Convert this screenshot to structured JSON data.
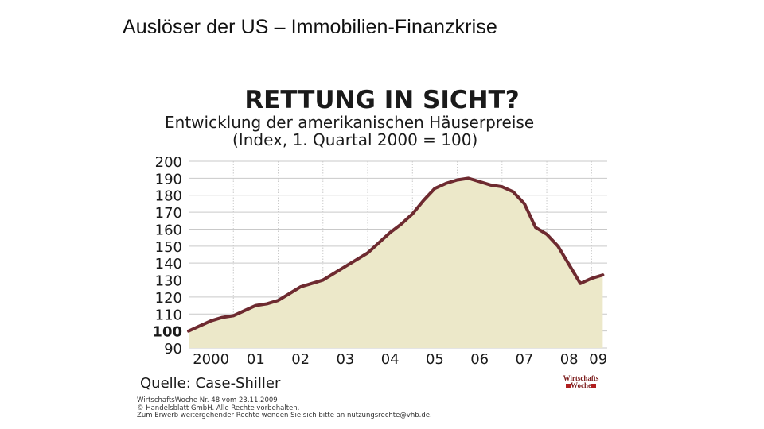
{
  "slide": {
    "title": "Auslöser der US – Immobilien-Finanzkrise"
  },
  "chart_data": {
    "type": "area",
    "title": "RETTUNG IN SICHT?",
    "subtitle_line1": "Entwicklung der amerikanischen Häuserpreise",
    "subtitle_line2": "(Index, 1. Quartal 2000 = 100)",
    "ylim": [
      90,
      200
    ],
    "yticks": [
      200,
      190,
      180,
      170,
      160,
      150,
      140,
      130,
      120,
      110,
      100,
      90
    ],
    "xlim": [
      2000,
      2009.35
    ],
    "xticks": [
      {
        "label": "2000",
        "x": 2000.5
      },
      {
        "label": "01",
        "x": 2001.5
      },
      {
        "label": "02",
        "x": 2002.5
      },
      {
        "label": "03",
        "x": 2003.5
      },
      {
        "label": "04",
        "x": 2004.5
      },
      {
        "label": "05",
        "x": 2005.5
      },
      {
        "label": "06",
        "x": 2006.5
      },
      {
        "label": "07",
        "x": 2007.5
      },
      {
        "label": "08",
        "x": 2008.5
      },
      {
        "label": "09",
        "x": 2009.15
      }
    ],
    "grid": true,
    "series": [
      {
        "name": "Case-Shiller Index",
        "x": [
          2000.0,
          2000.25,
          2000.5,
          2000.75,
          2001.0,
          2001.25,
          2001.5,
          2001.75,
          2002.0,
          2002.25,
          2002.5,
          2002.75,
          2003.0,
          2003.25,
          2003.5,
          2003.75,
          2004.0,
          2004.25,
          2004.5,
          2004.75,
          2005.0,
          2005.25,
          2005.5,
          2005.75,
          2006.0,
          2006.25,
          2006.5,
          2006.75,
          2007.0,
          2007.25,
          2007.5,
          2007.75,
          2008.0,
          2008.25,
          2008.5,
          2008.75,
          2009.0,
          2009.25
        ],
        "values": [
          100,
          103,
          106,
          108,
          109,
          112,
          115,
          116,
          118,
          122,
          126,
          128,
          130,
          134,
          138,
          142,
          146,
          152,
          158,
          163,
          169,
          177,
          184,
          187,
          189,
          190,
          188,
          186,
          185,
          182,
          175,
          161,
          157,
          150,
          139,
          128,
          131,
          133
        ]
      }
    ],
    "source": "Quelle: Case-Shiller",
    "line_color": "#6e2a30",
    "fill_color": "#ece8c9",
    "grid_color": "#c9c9c9"
  },
  "footer": {
    "imprint_line1": "WirtschaftsWoche Nr. 48 vom 23.11.2009",
    "imprint_line2": "© Handelsblatt GmbH. Alle Rechte vorbehalten.",
    "imprint_line3": "Zum Erwerb weitergehender Rechte wenden Sie sich bitte an nutzungsrechte@vhb.de.",
    "logo_line1": "Wirtschafts",
    "logo_line2": "Woche"
  }
}
